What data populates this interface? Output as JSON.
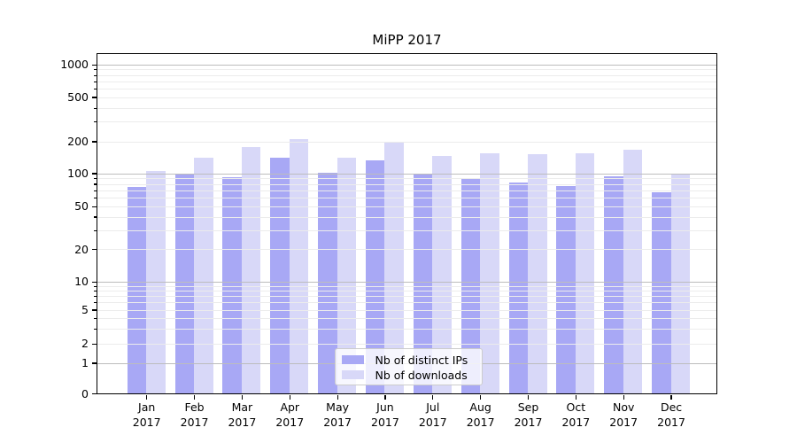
{
  "title": "MiPP 2017",
  "colors": {
    "distinct_ips_bar": "#a8a8f5",
    "downloads_bar": "#d8d8f8",
    "grid_major": "#bdbdbd",
    "grid_minor": "#ececec",
    "spine": "#000000",
    "legend_border": "#cccccc"
  },
  "legend": {
    "items": [
      {
        "label": "Nb of distinct IPs"
      },
      {
        "label": "Nb of downloads"
      }
    ]
  },
  "y_axis": {
    "tick_labels": [
      "1000",
      "500",
      "200",
      "100",
      "50",
      "20",
      "10",
      "5",
      "2",
      "1",
      "0"
    ],
    "tick_values": [
      1000,
      500,
      200,
      100,
      50,
      20,
      10,
      5,
      2,
      1,
      0
    ]
  },
  "x_axis": {
    "months": [
      "Jan",
      "Feb",
      "Mar",
      "Apr",
      "May",
      "Jun",
      "Jul",
      "Aug",
      "Sep",
      "Oct",
      "Nov",
      "Dec"
    ],
    "year": "2017"
  },
  "chart_data": {
    "type": "bar",
    "title": "MiPP 2017",
    "categories": [
      "Jan 2017",
      "Feb 2017",
      "Mar 2017",
      "Apr 2017",
      "May 2017",
      "Jun 2017",
      "Jul 2017",
      "Aug 2017",
      "Sep 2017",
      "Oct 2017",
      "Nov 2017",
      "Dec 2017"
    ],
    "series": [
      {
        "name": "Nb of distinct IPs",
        "color": "#a8a8f5",
        "values": [
          75,
          97,
          92,
          140,
          101,
          133,
          99,
          90,
          82,
          77,
          93,
          67
        ]
      },
      {
        "name": "Nb of downloads",
        "color": "#d8d8f8",
        "values": [
          105,
          140,
          178,
          210,
          140,
          199,
          147,
          155,
          150,
          153,
          168,
          99
        ]
      }
    ],
    "yscale": "symlog",
    "y_ticks": [
      0,
      1,
      2,
      5,
      10,
      20,
      50,
      100,
      200,
      500,
      1000
    ],
    "ylim": [
      0,
      1250
    ],
    "grid": "major and minor horizontal gridlines, drawn above bars",
    "legend_position": "lower center"
  }
}
